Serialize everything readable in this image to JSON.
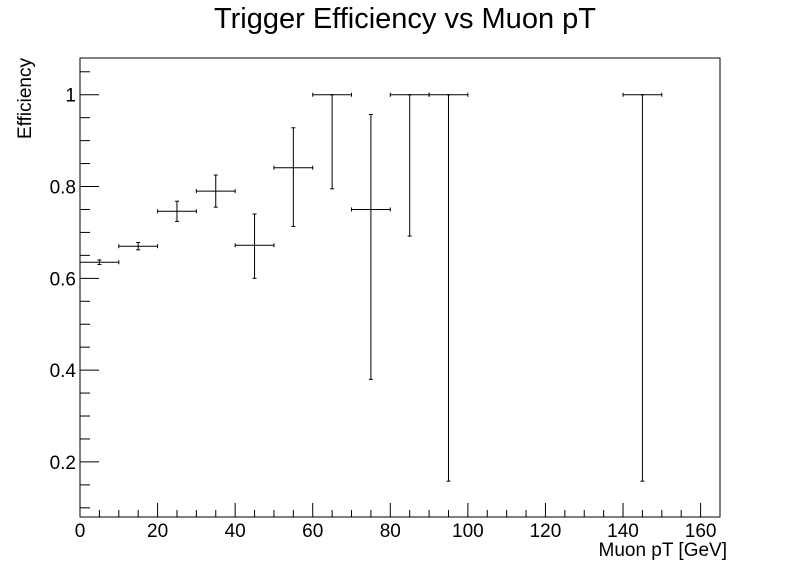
{
  "chart_data": {
    "type": "scatter",
    "title": "Trigger Efficiency vs Muon pT",
    "xlabel": "Muon pT [GeV]",
    "ylabel": "Efficiency",
    "xlim": [
      0,
      165
    ],
    "ylim": [
      0.08,
      1.08
    ],
    "grid": false,
    "x_ticks": [
      0,
      20,
      40,
      60,
      80,
      100,
      120,
      140,
      160
    ],
    "x_tick_labels": [
      "0",
      "20",
      "40",
      "60",
      "80",
      "100",
      "120",
      "140",
      "160"
    ],
    "y_ticks": [
      0.2,
      0.4,
      0.6,
      0.8,
      1.0
    ],
    "y_tick_labels": [
      "0.2",
      "0.4",
      "0.6",
      "0.8",
      "1"
    ],
    "series": [
      {
        "color": "#000000",
        "points": [
          {
            "x": 5,
            "x_low": 0,
            "x_high": 10,
            "y": 0.635,
            "y_low": 0.63,
            "y_high": 0.64
          },
          {
            "x": 15,
            "x_low": 10,
            "x_high": 20,
            "y": 0.67,
            "y_low": 0.662,
            "y_high": 0.678
          },
          {
            "x": 25,
            "x_low": 20,
            "x_high": 30,
            "y": 0.746,
            "y_low": 0.724,
            "y_high": 0.768
          },
          {
            "x": 35,
            "x_low": 30,
            "x_high": 40,
            "y": 0.79,
            "y_low": 0.755,
            "y_high": 0.825
          },
          {
            "x": 45,
            "x_low": 40,
            "x_high": 50,
            "y": 0.672,
            "y_low": 0.6,
            "y_high": 0.74
          },
          {
            "x": 55,
            "x_low": 50,
            "x_high": 60,
            "y": 0.841,
            "y_low": 0.713,
            "y_high": 0.928
          },
          {
            "x": 65,
            "x_low": 60,
            "x_high": 70,
            "y": 1.0,
            "y_low": 0.795,
            "y_high": 1.0
          },
          {
            "x": 75,
            "x_low": 70,
            "x_high": 80,
            "y": 0.75,
            "y_low": 0.38,
            "y_high": 0.957
          },
          {
            "x": 85,
            "x_low": 80,
            "x_high": 90,
            "y": 1.0,
            "y_low": 0.692,
            "y_high": 1.0
          },
          {
            "x": 95,
            "x_low": 90,
            "x_high": 100,
            "y": 1.0,
            "y_low": 0.158,
            "y_high": 1.0
          },
          {
            "x": 145,
            "x_low": 140,
            "x_high": 150,
            "y": 1.0,
            "y_low": 0.158,
            "y_high": 1.0
          }
        ]
      }
    ]
  }
}
